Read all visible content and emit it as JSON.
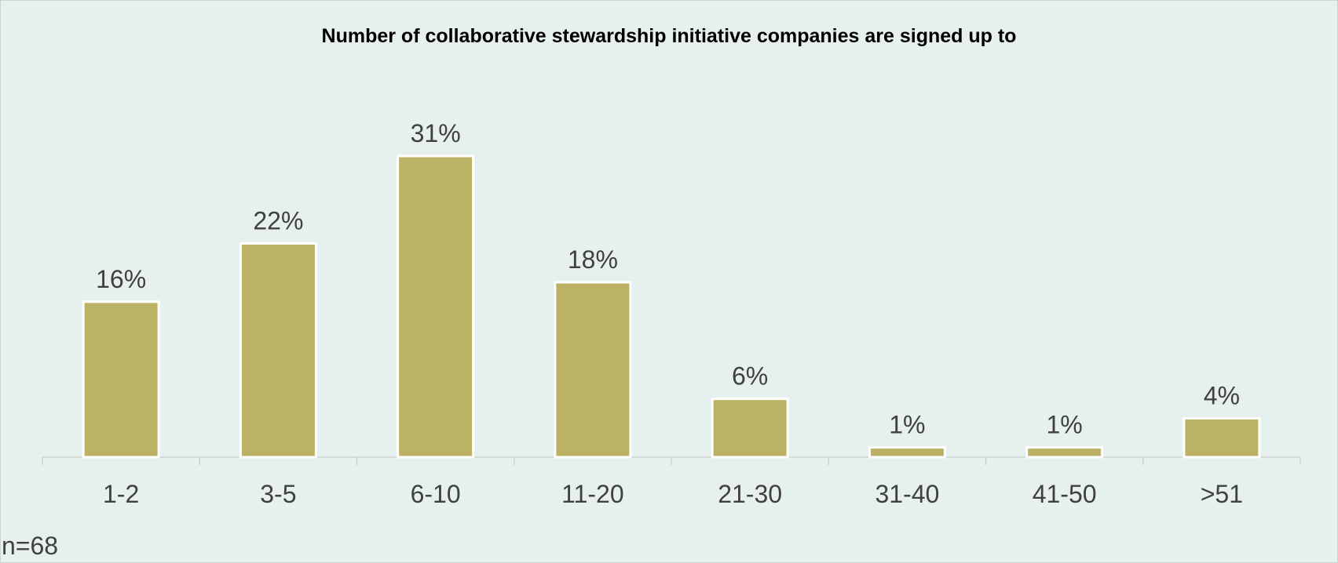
{
  "chart_data": {
    "type": "bar",
    "title": "Number of collaborative stewardship initiative companies are signed up to",
    "categories": [
      "1-2",
      "3-5",
      "6-10",
      "11-20",
      "21-30",
      "31-40",
      "41-50",
      ">51"
    ],
    "values": [
      16,
      22,
      31,
      18,
      6,
      1,
      1,
      4
    ],
    "value_labels": [
      "16%",
      "22%",
      "31%",
      "18%",
      "6%",
      "1%",
      "1%",
      "4%"
    ],
    "xlabel": "",
    "ylabel": "",
    "ylim": [
      0,
      31
    ],
    "grid": false,
    "legend": "none",
    "colors": {
      "bar": "#bbb265",
      "bar_border": "#ffffff",
      "background": "#e6f0ee",
      "axis": "#d0d0d0",
      "text": "#404040"
    }
  },
  "footnote": "n=68"
}
